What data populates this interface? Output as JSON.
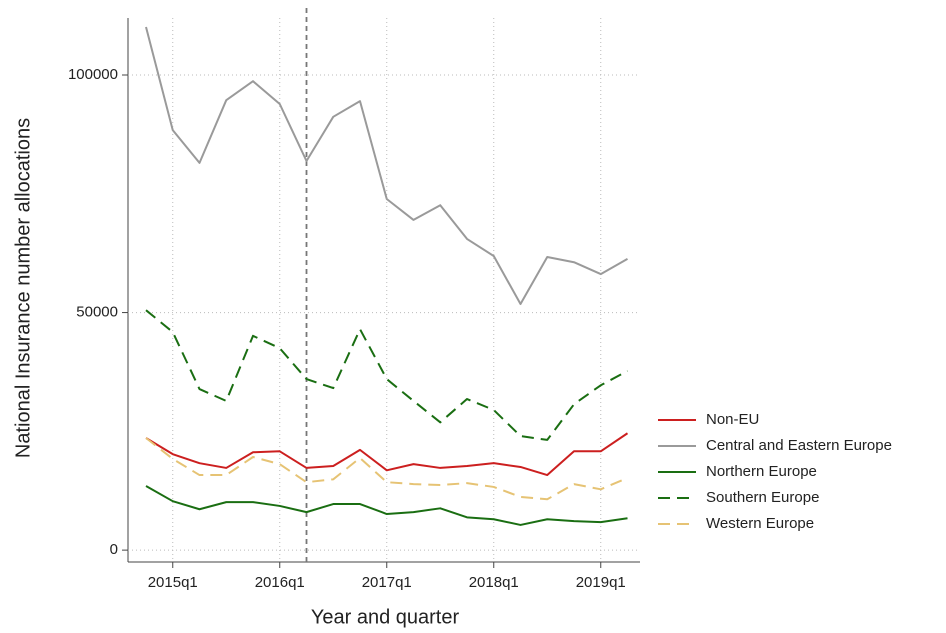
{
  "chart_data": {
    "type": "line",
    "x_label": "Year and quarter",
    "y_label": "National Insurance number allocations",
    "categories": [
      null,
      "2015q1",
      null,
      null,
      null,
      "2016q1",
      null,
      null,
      null,
      "2017q1",
      null,
      null,
      null,
      "2018q1",
      null,
      null,
      null,
      "2019q1",
      null
    ],
    "vline": 6,
    "ylim": [
      -2500,
      112000
    ],
    "yticks": [
      0,
      50000,
      100000
    ],
    "grid": true,
    "legend": "right",
    "series": [
      {
        "name": "Non-EU",
        "color": "#cc1f1f",
        "dash": false,
        "values": [
          23600,
          20200,
          18300,
          17300,
          20600,
          20800,
          17300,
          17700,
          21100,
          16800,
          18100,
          17300,
          17700,
          18300,
          17500,
          15800,
          20800,
          20800,
          24600
        ]
      },
      {
        "name": "Central and Eastern Europe",
        "color": "#9a9a9a",
        "dash": false,
        "values": [
          110100,
          88400,
          81500,
          94700,
          98700,
          93900,
          81900,
          91200,
          94500,
          73900,
          69500,
          72600,
          65500,
          61900,
          51800,
          61700,
          60600,
          58100,
          61300
        ]
      },
      {
        "name": "Northern Europe",
        "color": "#1a6e12",
        "dash": false,
        "values": [
          13500,
          10300,
          8600,
          10100,
          10100,
          9300,
          8000,
          9700,
          9700,
          7600,
          8000,
          8800,
          6900,
          6500,
          5300,
          6500,
          6100,
          5900,
          6700
        ]
      },
      {
        "name": "Southern Europe",
        "color": "#1a6e12",
        "dash": true,
        "values": [
          50500,
          45900,
          33900,
          31400,
          45100,
          42500,
          36000,
          34100,
          46500,
          36000,
          31400,
          26900,
          31800,
          29500,
          24000,
          23200,
          30700,
          34700,
          37700
        ]
      },
      {
        "name": "Western Europe",
        "color": "#e6c374",
        "dash": true,
        "values": [
          23600,
          19200,
          15800,
          15800,
          19600,
          18100,
          14300,
          14900,
          19400,
          14300,
          13900,
          13700,
          14100,
          13300,
          11200,
          10700,
          13900,
          12800,
          15200
        ]
      }
    ]
  }
}
